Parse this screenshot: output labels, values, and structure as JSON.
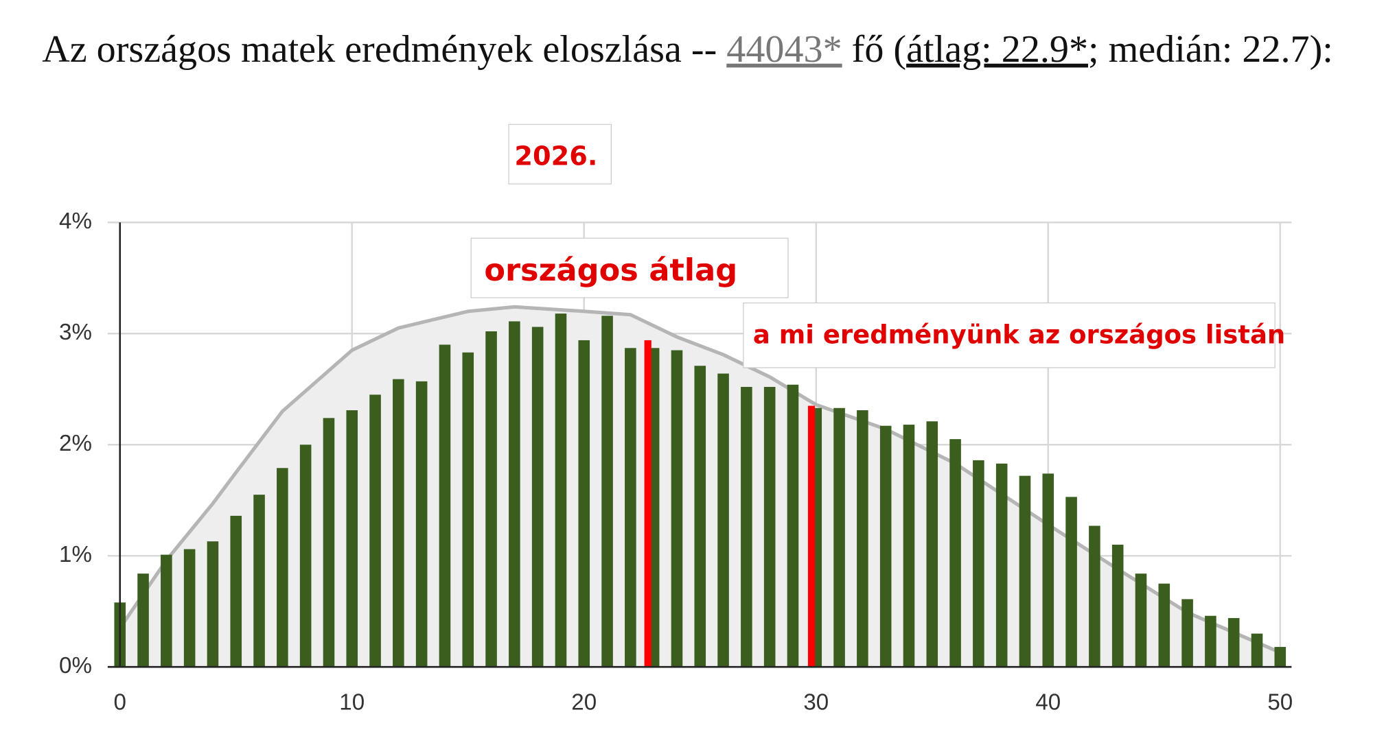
{
  "chart_data": {
    "type": "bar",
    "title_parts": [
      "Az országos matek eredmények eloszlása -- ",
      "44043*",
      " fő (",
      "átlag: 22.9*",
      "; medián: 22.7):"
    ],
    "annotations": [
      "2026.",
      "országos átlag",
      "a mi eredményünk az országos listán"
    ],
    "x": [
      0,
      1,
      2,
      3,
      4,
      5,
      6,
      7,
      8,
      9,
      10,
      11,
      12,
      13,
      14,
      15,
      16,
      17,
      18,
      19,
      20,
      21,
      22,
      23,
      24,
      25,
      26,
      27,
      28,
      29,
      30,
      31,
      32,
      33,
      34,
      35,
      36,
      37,
      38,
      39,
      40,
      41,
      42,
      43,
      44,
      45,
      46,
      47,
      48,
      49,
      50
    ],
    "values": [
      0.58,
      0.84,
      1.01,
      1.06,
      1.13,
      1.36,
      1.55,
      1.79,
      2.0,
      2.24,
      2.31,
      2.45,
      2.59,
      2.57,
      2.9,
      2.83,
      3.02,
      3.11,
      3.06,
      3.18,
      2.94,
      3.16,
      2.87,
      2.87,
      2.85,
      2.71,
      2.64,
      2.52,
      2.52,
      2.54,
      2.33,
      2.33,
      2.31,
      2.17,
      2.18,
      2.21,
      2.05,
      1.86,
      1.83,
      1.72,
      1.74,
      1.53,
      1.27,
      1.1,
      0.84,
      0.75,
      0.61,
      0.46,
      0.44,
      0.3,
      0.18
    ],
    "color": "#3b5e1f",
    "curve": {
      "x": [
        0,
        2,
        4,
        5,
        7,
        10,
        12,
        15,
        17,
        20,
        22,
        24,
        26,
        28,
        30,
        33,
        36,
        40,
        43,
        46,
        50
      ],
      "values": [
        0.35,
        0.96,
        1.47,
        1.75,
        2.3,
        2.85,
        3.05,
        3.2,
        3.24,
        3.2,
        3.17,
        2.97,
        2.81,
        2.61,
        2.36,
        2.14,
        1.83,
        1.28,
        0.88,
        0.49,
        0.13
      ],
      "color": "#b5b5b5",
      "fill": "#eeeeee"
    },
    "highlights": {
      "x": [
        22.75,
        29.8
      ],
      "values": [
        2.94,
        2.35
      ],
      "color": "#ff0000"
    },
    "xlim": [
      0,
      50
    ],
    "xticks": [
      0,
      10,
      20,
      30,
      40,
      50
    ],
    "ylim": [
      0,
      4
    ],
    "yticks": [
      {
        "value": 0,
        "label": "0%"
      },
      {
        "value": 1,
        "label": "1%"
      },
      {
        "value": 2,
        "label": "2%"
      },
      {
        "value": 3,
        "label": "3%"
      },
      {
        "value": 4,
        "label": "4%"
      }
    ],
    "grid": true
  }
}
